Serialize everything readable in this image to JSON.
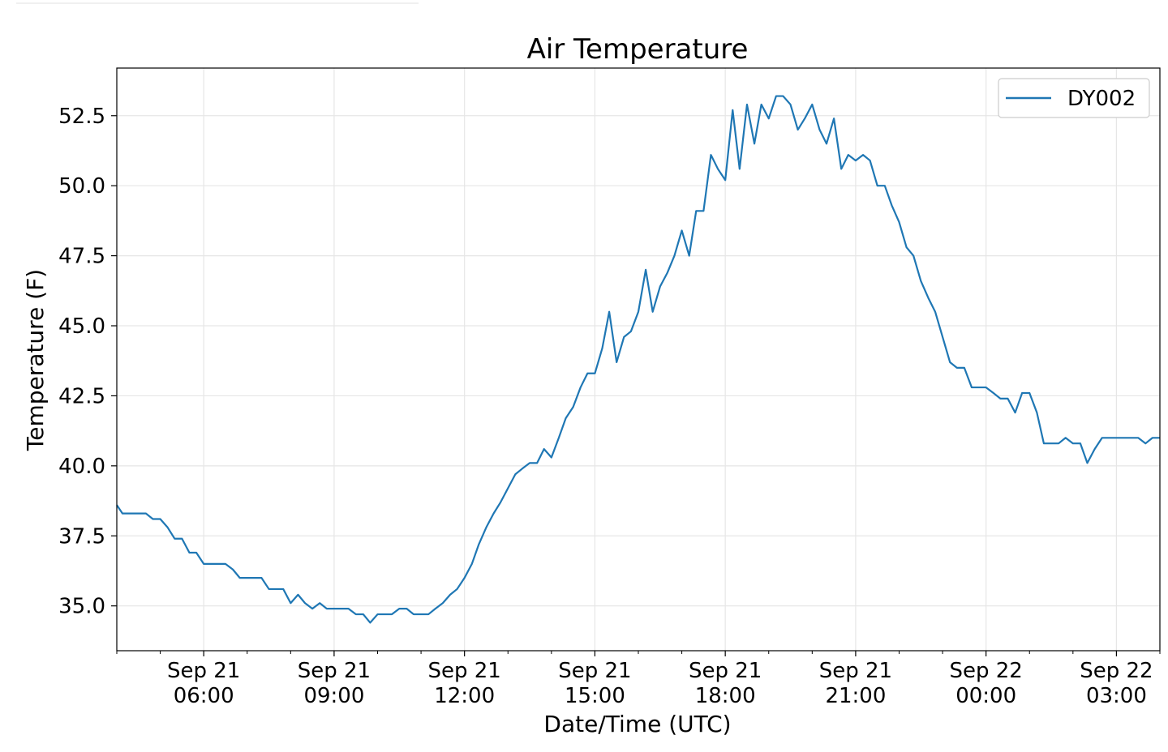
{
  "chart_data": {
    "type": "line",
    "title": "Air Temperature",
    "xlabel": "Date/Time (UTC)",
    "ylabel": "Temperature (F)",
    "x_range_hours": [
      4.0,
      28.0
    ],
    "ylim": [
      33.4,
      54.2
    ],
    "grid": true,
    "legend_position": "top-right",
    "y_ticks": [
      35.0,
      37.5,
      40.0,
      42.5,
      45.0,
      47.5,
      50.0,
      52.5
    ],
    "y_tick_labels": [
      "35.0",
      "37.5",
      "40.0",
      "42.5",
      "45.0",
      "47.5",
      "50.0",
      "52.5"
    ],
    "x_ticks": [
      {
        "hours": 6,
        "line1": "Sep 21",
        "line2": "06:00"
      },
      {
        "hours": 9,
        "line1": "Sep 21",
        "line2": "09:00"
      },
      {
        "hours": 12,
        "line1": "Sep 21",
        "line2": "12:00"
      },
      {
        "hours": 15,
        "line1": "Sep 21",
        "line2": "15:00"
      },
      {
        "hours": 18,
        "line1": "Sep 21",
        "line2": "18:00"
      },
      {
        "hours": 21,
        "line1": "Sep 21",
        "line2": "21:00"
      },
      {
        "hours": 24,
        "line1": "Sep 22",
        "line2": "00:00"
      },
      {
        "hours": 27,
        "line1": "Sep 22",
        "line2": "03:00"
      }
    ],
    "series": [
      {
        "name": "DY002",
        "color": "#1f77b4",
        "points": [
          [
            4.0,
            38.6
          ],
          [
            4.13,
            38.3
          ],
          [
            4.33,
            38.3
          ],
          [
            4.5,
            38.3
          ],
          [
            4.67,
            38.3
          ],
          [
            4.83,
            38.1
          ],
          [
            5.0,
            38.1
          ],
          [
            5.17,
            37.8
          ],
          [
            5.33,
            37.4
          ],
          [
            5.5,
            37.4
          ],
          [
            5.67,
            36.9
          ],
          [
            5.83,
            36.9
          ],
          [
            6.0,
            36.5
          ],
          [
            6.17,
            36.5
          ],
          [
            6.33,
            36.5
          ],
          [
            6.5,
            36.5
          ],
          [
            6.67,
            36.3
          ],
          [
            6.83,
            36.0
          ],
          [
            7.0,
            36.0
          ],
          [
            7.17,
            36.0
          ],
          [
            7.33,
            36.0
          ],
          [
            7.5,
            35.6
          ],
          [
            7.67,
            35.6
          ],
          [
            7.83,
            35.6
          ],
          [
            8.0,
            35.1
          ],
          [
            8.17,
            35.4
          ],
          [
            8.33,
            35.1
          ],
          [
            8.5,
            34.9
          ],
          [
            8.67,
            35.1
          ],
          [
            8.83,
            34.9
          ],
          [
            9.0,
            34.9
          ],
          [
            9.17,
            34.9
          ],
          [
            9.33,
            34.9
          ],
          [
            9.5,
            34.7
          ],
          [
            9.67,
            34.7
          ],
          [
            9.83,
            34.4
          ],
          [
            10.0,
            34.7
          ],
          [
            10.17,
            34.7
          ],
          [
            10.33,
            34.7
          ],
          [
            10.5,
            34.9
          ],
          [
            10.67,
            34.9
          ],
          [
            10.83,
            34.7
          ],
          [
            11.0,
            34.7
          ],
          [
            11.17,
            34.7
          ],
          [
            11.33,
            34.9
          ],
          [
            11.5,
            35.1
          ],
          [
            11.67,
            35.4
          ],
          [
            11.83,
            35.6
          ],
          [
            12.0,
            36.0
          ],
          [
            12.17,
            36.5
          ],
          [
            12.33,
            37.2
          ],
          [
            12.5,
            37.8
          ],
          [
            12.67,
            38.3
          ],
          [
            12.83,
            38.7
          ],
          [
            13.0,
            39.2
          ],
          [
            13.17,
            39.7
          ],
          [
            13.33,
            39.9
          ],
          [
            13.5,
            40.1
          ],
          [
            13.67,
            40.1
          ],
          [
            13.83,
            40.6
          ],
          [
            14.0,
            40.3
          ],
          [
            14.17,
            41.0
          ],
          [
            14.33,
            41.7
          ],
          [
            14.5,
            42.1
          ],
          [
            14.67,
            42.8
          ],
          [
            14.83,
            43.3
          ],
          [
            15.0,
            43.3
          ],
          [
            15.17,
            44.2
          ],
          [
            15.33,
            45.5
          ],
          [
            15.5,
            43.7
          ],
          [
            15.67,
            44.6
          ],
          [
            15.83,
            44.8
          ],
          [
            16.0,
            45.5
          ],
          [
            16.17,
            47.0
          ],
          [
            16.33,
            45.5
          ],
          [
            16.5,
            46.4
          ],
          [
            16.67,
            46.9
          ],
          [
            16.83,
            47.5
          ],
          [
            17.0,
            48.4
          ],
          [
            17.17,
            47.5
          ],
          [
            17.33,
            49.1
          ],
          [
            17.5,
            49.1
          ],
          [
            17.67,
            51.1
          ],
          [
            17.83,
            50.6
          ],
          [
            18.0,
            50.2
          ],
          [
            18.17,
            52.7
          ],
          [
            18.33,
            50.6
          ],
          [
            18.5,
            52.9
          ],
          [
            18.67,
            51.5
          ],
          [
            18.83,
            52.9
          ],
          [
            19.0,
            52.4
          ],
          [
            19.17,
            53.2
          ],
          [
            19.33,
            53.2
          ],
          [
            19.5,
            52.9
          ],
          [
            19.67,
            52.0
          ],
          [
            19.83,
            52.4
          ],
          [
            20.0,
            52.9
          ],
          [
            20.17,
            52.0
          ],
          [
            20.33,
            51.5
          ],
          [
            20.5,
            52.4
          ],
          [
            20.67,
            50.6
          ],
          [
            20.83,
            51.1
          ],
          [
            21.0,
            50.9
          ],
          [
            21.17,
            51.1
          ],
          [
            21.33,
            50.9
          ],
          [
            21.5,
            50.0
          ],
          [
            21.67,
            50.0
          ],
          [
            21.83,
            49.3
          ],
          [
            22.0,
            48.7
          ],
          [
            22.17,
            47.8
          ],
          [
            22.33,
            47.5
          ],
          [
            22.5,
            46.6
          ],
          [
            22.67,
            46.0
          ],
          [
            22.83,
            45.5
          ],
          [
            23.0,
            44.6
          ],
          [
            23.17,
            43.7
          ],
          [
            23.33,
            43.5
          ],
          [
            23.5,
            43.5
          ],
          [
            23.67,
            42.8
          ],
          [
            23.83,
            42.8
          ],
          [
            24.0,
            42.8
          ],
          [
            24.17,
            42.6
          ],
          [
            24.33,
            42.4
          ],
          [
            24.5,
            42.4
          ],
          [
            24.67,
            41.9
          ],
          [
            24.83,
            42.6
          ],
          [
            25.0,
            42.6
          ],
          [
            25.17,
            41.9
          ],
          [
            25.33,
            40.8
          ],
          [
            25.5,
            40.8
          ],
          [
            25.67,
            40.8
          ],
          [
            25.83,
            41.0
          ],
          [
            26.0,
            40.8
          ],
          [
            26.17,
            40.8
          ],
          [
            26.33,
            40.1
          ],
          [
            26.5,
            40.6
          ],
          [
            26.67,
            41.0
          ],
          [
            26.83,
            41.0
          ],
          [
            27.0,
            41.0
          ],
          [
            27.17,
            41.0
          ],
          [
            27.33,
            41.0
          ],
          [
            27.5,
            41.0
          ],
          [
            27.67,
            40.8
          ],
          [
            27.83,
            41.0
          ],
          [
            28.0,
            41.0
          ]
        ]
      }
    ]
  }
}
